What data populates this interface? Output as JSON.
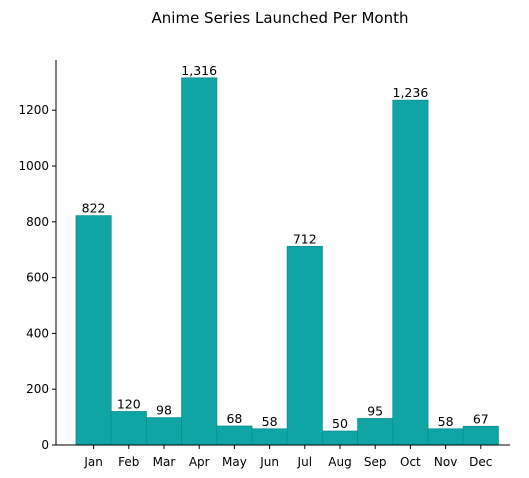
{
  "chart_data": {
    "type": "bar",
    "title": "Anime Series Launched Per Month",
    "xlabel": "",
    "ylabel": "",
    "categories": [
      "Jan",
      "Feb",
      "Mar",
      "Apr",
      "May",
      "Jun",
      "Jul",
      "Aug",
      "Sep",
      "Oct",
      "Nov",
      "Dec"
    ],
    "values": [
      822,
      120,
      98,
      1316,
      68,
      58,
      712,
      50,
      95,
      1236,
      58,
      67
    ],
    "value_labels": [
      "822",
      "120",
      "98",
      "1,316",
      "68",
      "58",
      "712",
      "50",
      "95",
      "1,236",
      "58",
      "67"
    ],
    "ylim": [
      0,
      1380
    ],
    "yticks": [
      0,
      200,
      400,
      600,
      800,
      1000,
      1200
    ],
    "grid": false,
    "legend": "none",
    "bar_color": "#0fa5a5",
    "bar_edge_color": "#0c8f8f"
  }
}
